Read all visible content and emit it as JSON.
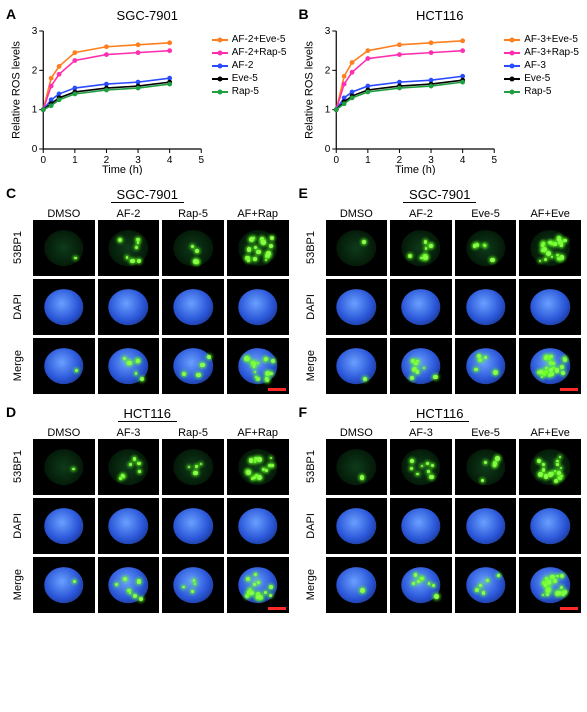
{
  "panels": {
    "A": {
      "label": "A",
      "title": "SGC-7901",
      "xlabel": "Time (h)",
      "ylabel": "Relative ROS levels",
      "xlim": [
        0,
        5
      ],
      "ylim": [
        0,
        3
      ],
      "xticks": [
        0,
        1,
        2,
        3,
        4,
        5
      ],
      "yticks": [
        0,
        1,
        2,
        3
      ],
      "series": [
        {
          "name": "AF-2+Eve-5",
          "color": "#ff7f1f",
          "x": [
            0,
            0.25,
            0.5,
            1,
            2,
            3,
            4
          ],
          "y": [
            1.0,
            1.8,
            2.1,
            2.45,
            2.6,
            2.65,
            2.7
          ]
        },
        {
          "name": "AF-2+Rap-5",
          "color": "#ff2fb0",
          "x": [
            0,
            0.25,
            0.5,
            1,
            2,
            3,
            4
          ],
          "y": [
            1.0,
            1.6,
            1.9,
            2.25,
            2.4,
            2.45,
            2.5
          ]
        },
        {
          "name": "AF-2",
          "color": "#2b4bff",
          "x": [
            0,
            0.25,
            0.5,
            1,
            2,
            3,
            4
          ],
          "y": [
            1.0,
            1.25,
            1.4,
            1.55,
            1.65,
            1.7,
            1.8
          ]
        },
        {
          "name": "Eve-5",
          "color": "#000000",
          "x": [
            0,
            0.25,
            0.5,
            1,
            2,
            3,
            4
          ],
          "y": [
            1.0,
            1.15,
            1.3,
            1.45,
            1.55,
            1.6,
            1.7
          ]
        },
        {
          "name": "Rap-5",
          "color": "#1f9f3f",
          "x": [
            0,
            0.25,
            0.5,
            1,
            2,
            3,
            4
          ],
          "y": [
            1.0,
            1.1,
            1.25,
            1.4,
            1.5,
            1.55,
            1.65
          ]
        }
      ]
    },
    "B": {
      "label": "B",
      "title": "HCT116",
      "xlabel": "Time (h)",
      "ylabel": "Relative ROS levels",
      "xlim": [
        0,
        5
      ],
      "ylim": [
        0,
        3
      ],
      "xticks": [
        0,
        1,
        2,
        3,
        4,
        5
      ],
      "yticks": [
        0,
        1,
        2,
        3
      ],
      "series": [
        {
          "name": "AF-3+Eve-5",
          "color": "#ff7f1f",
          "x": [
            0,
            0.25,
            0.5,
            1,
            2,
            3,
            4
          ],
          "y": [
            1.0,
            1.85,
            2.2,
            2.5,
            2.65,
            2.7,
            2.75
          ]
        },
        {
          "name": "AF-3+Rap-5",
          "color": "#ff2fb0",
          "x": [
            0,
            0.25,
            0.5,
            1,
            2,
            3,
            4
          ],
          "y": [
            1.0,
            1.65,
            1.95,
            2.3,
            2.4,
            2.45,
            2.5
          ]
        },
        {
          "name": "AF-3",
          "color": "#2b4bff",
          "x": [
            0,
            0.25,
            0.5,
            1,
            2,
            3,
            4
          ],
          "y": [
            1.0,
            1.3,
            1.45,
            1.6,
            1.7,
            1.75,
            1.85
          ]
        },
        {
          "name": "Eve-5",
          "color": "#000000",
          "x": [
            0,
            0.25,
            0.5,
            1,
            2,
            3,
            4
          ],
          "y": [
            1.0,
            1.2,
            1.35,
            1.5,
            1.6,
            1.65,
            1.75
          ]
        },
        {
          "name": "Rap-5",
          "color": "#1f9f3f",
          "x": [
            0,
            0.25,
            0.5,
            1,
            2,
            3,
            4
          ],
          "y": [
            1.0,
            1.15,
            1.3,
            1.45,
            1.55,
            1.6,
            1.7
          ]
        }
      ]
    }
  },
  "micrographs": {
    "row_labels": [
      "53BP1",
      "DAPI",
      "Merge"
    ],
    "C": {
      "label": "C",
      "title": "SGC-7901",
      "cols": [
        "DMSO",
        "AF-2",
        "Rap-5",
        "AF+Rap"
      ],
      "foci": [
        1,
        7,
        4,
        16
      ]
    },
    "E": {
      "label": "E",
      "title": "SGC-7901",
      "cols": [
        "DMSO",
        "AF-2",
        "Eve-5",
        "AF+Eve"
      ],
      "foci": [
        1,
        8,
        5,
        22
      ]
    },
    "D": {
      "label": "D",
      "title": "HCT116",
      "cols": [
        "DMSO",
        "AF-3",
        "Rap-5",
        "AF+Rap"
      ],
      "foci": [
        1,
        7,
        4,
        15
      ]
    },
    "F": {
      "label": "F",
      "title": "HCT116",
      "cols": [
        "DMSO",
        "AF-3",
        "Eve-5",
        "AF+Eve"
      ],
      "foci": [
        1,
        8,
        5,
        18
      ]
    }
  },
  "style": {
    "background": "#ffffff",
    "axis_color": "#000000",
    "axis_width": 1.2,
    "marker_size": 4,
    "line_width": 1.6,
    "tick_fontsize": 10,
    "label_fontsize": 12,
    "title_fontsize": 13,
    "panel_label_fontsize": 14,
    "errorbar_halfheight": 0.05,
    "dapi_color": "#2a56d8",
    "foci_color": "#8dff4a",
    "scalebar_color": "#ff2a2a",
    "cell_bg": "#000000"
  }
}
